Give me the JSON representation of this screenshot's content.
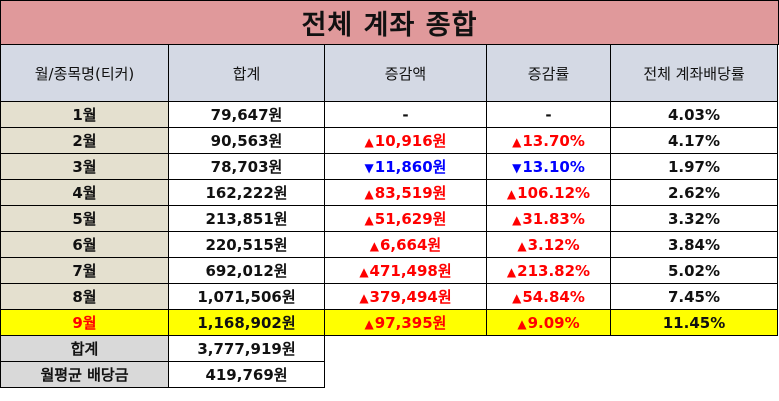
{
  "title": "전체 계좌 종합",
  "headers": [
    "월/종목명(티커)",
    "합계",
    "증감액",
    "증감률",
    "전체 계좌배당률"
  ],
  "rows": [
    {
      "month": "1월",
      "total": "79,647원",
      "change": "-",
      "change_dir": "none",
      "rate": "-",
      "rate_dir": "none",
      "yield": "4.03%"
    },
    {
      "month": "2월",
      "total": "90,563원",
      "change": "10,916원",
      "change_dir": "up",
      "rate": "13.70%",
      "rate_dir": "up",
      "yield": "4.17%"
    },
    {
      "month": "3월",
      "total": "78,703원",
      "change": "11,860원",
      "change_dir": "down",
      "rate": "13.10%",
      "rate_dir": "down",
      "yield": "1.97%"
    },
    {
      "month": "4월",
      "total": "162,222원",
      "change": "83,519원",
      "change_dir": "up",
      "rate": "106.12%",
      "rate_dir": "up",
      "yield": "2.62%"
    },
    {
      "month": "5월",
      "total": "213,851원",
      "change": "51,629원",
      "change_dir": "up",
      "rate": "31.83%",
      "rate_dir": "up",
      "yield": "3.32%"
    },
    {
      "month": "6월",
      "total": "220,515원",
      "change": "6,664원",
      "change_dir": "up",
      "rate": "3.12%",
      "rate_dir": "up",
      "yield": "3.84%"
    },
    {
      "month": "7월",
      "total": "692,012원",
      "change": "471,498원",
      "change_dir": "up",
      "rate": "213.82%",
      "rate_dir": "up",
      "yield": "5.02%"
    },
    {
      "month": "8월",
      "total": "1,071,506원",
      "change": "379,494원",
      "change_dir": "up",
      "rate": "54.84%",
      "rate_dir": "up",
      "yield": "7.45%"
    },
    {
      "month": "9월",
      "total": "1,168,902원",
      "change": "97,395원",
      "change_dir": "up",
      "rate": "9.09%",
      "rate_dir": "up",
      "yield": "11.45%",
      "highlight": true
    }
  ],
  "summary": [
    {
      "label": "합계",
      "value": "3,777,919원"
    },
    {
      "label": "월평균 배당금",
      "value": "419,769원"
    }
  ],
  "colors": {
    "title_bg": "#e0999b",
    "header_bg": "#d4d9e4",
    "month_bg": "#e4e0cf",
    "highlight_bg": "#ffff00",
    "up": "#ff0000",
    "down": "#0000ff"
  },
  "arrows": {
    "up": "▲",
    "down": "▼"
  }
}
